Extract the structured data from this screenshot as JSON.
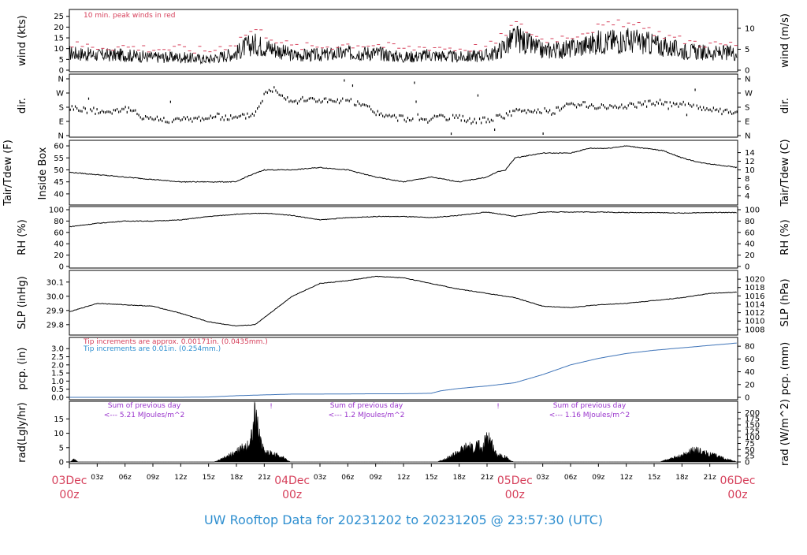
{
  "colors": {
    "red": "#d6405b",
    "blue": "#2f8fd0",
    "purple": "#9933cc",
    "blue_line": "#3f74b8",
    "black": "#000000"
  },
  "chart_data": {
    "type": "line",
    "title": "UW Rooftop Data for 20231202  to  20231205 @ 23:57:30  (UTC)",
    "x_axis": {
      "ticks": [
        "03z",
        "06z",
        "09z",
        "12z",
        "15z",
        "18z",
        "21z",
        "03z",
        "06z",
        "09z",
        "12z",
        "15z",
        "18z",
        "21z",
        "03z",
        "06z",
        "09z",
        "12z",
        "15z",
        "18z",
        "21z"
      ],
      "day_labels": [
        {
          "date": "03Dec",
          "hour": "00z"
        },
        {
          "date": "04Dec",
          "hour": "00z"
        },
        {
          "date": "05Dec",
          "hour": "00z"
        },
        {
          "date": "06Dec",
          "hour": "00z"
        }
      ],
      "range_hours": [
        0,
        72
      ]
    },
    "panels": [
      {
        "id": "wind",
        "ylabel_left": "wind (kts)",
        "ylabel_right": "wind (m/s)",
        "yticks_left": [
          "0",
          "5",
          "10",
          "15",
          "20",
          "25"
        ],
        "yticks_right": [
          "0",
          "5",
          "10"
        ],
        "ylim": [
          0,
          26
        ],
        "annotation": "10 min. peak winds in red",
        "series": [
          {
            "name": "wind speed",
            "x": [
              0,
              3,
              6,
              9,
              12,
              15,
              18,
              19,
              20,
              22,
              24,
              27,
              30,
              33,
              36,
              39,
              42,
              45,
              46,
              48,
              51,
              54,
              57,
              60,
              63,
              66,
              69,
              72
            ],
            "y": [
              8,
              7,
              7,
              6,
              6,
              5,
              8,
              11,
              12,
              10,
              7,
              7,
              8,
              8,
              6,
              7,
              6,
              7,
              8,
              15,
              9,
              10,
              13,
              14,
              12,
              9,
              8,
              8
            ]
          },
          {
            "name": "10 min. peak winds",
            "x": [
              0,
              3,
              6,
              9,
              12,
              15,
              18,
              19,
              20,
              22,
              24,
              27,
              30,
              33,
              36,
              39,
              42,
              45,
              46,
              48,
              51,
              54,
              57,
              60,
              63,
              66,
              69,
              72
            ],
            "y": [
              12,
              11,
              11,
              10,
              10,
              9,
              13,
              17,
              19,
              15,
              11,
              11,
              12,
              12,
              10,
              11,
              10,
              11,
              13,
              22,
              14,
              16,
              20,
              22,
              18,
              14,
              12,
              12
            ]
          }
        ]
      },
      {
        "id": "dir",
        "ylabel_left": "dir.",
        "ylabel_right": "dir.",
        "yticks_left": [
          "N",
          "E",
          "S",
          "W",
          "N"
        ],
        "yticks_right": [
          "N",
          "E",
          "S",
          "W",
          "N"
        ],
        "ylim": [
          0,
          360
        ],
        "series": [
          {
            "name": "wind direction",
            "x": [
              0,
              2,
              4,
              6,
              8,
              10,
              12,
              14,
              16,
              18,
              20,
              21,
              22,
              24,
              26,
              28,
              30,
              32,
              34,
              36,
              38,
              40,
              42,
              44,
              46,
              48,
              50,
              52,
              54,
              56,
              58,
              60,
              62,
              64,
              66,
              68,
              70,
              72
            ],
            "y": [
              180,
              160,
              150,
              170,
              120,
              100,
              100,
              110,
              120,
              110,
              140,
              260,
              300,
              220,
              230,
              220,
              220,
              180,
              120,
              110,
              100,
              110,
              110,
              90,
              110,
              150,
              160,
              150,
              200,
              190,
              180,
              190,
              200,
              210,
              200,
              180,
              150,
              140
            ]
          }
        ]
      },
      {
        "id": "temp",
        "ylabel_left": "Tair/Tdew (F)",
        "ylabel_left2": "Inside Box",
        "ylabel_right": "Tair/Tdew (C)",
        "yticks_left": [
          "40",
          "45",
          "50",
          "55",
          "60"
        ],
        "yticks_right": [
          "4",
          "6",
          "8",
          "10",
          "12",
          "14"
        ],
        "ylim": [
          38,
          61
        ],
        "series": [
          {
            "name": "inside box temperature",
            "x": [
              0,
              3,
              6,
              9,
              12,
              15,
              18,
              19,
              21,
              24,
              27,
              30,
              33,
              36,
              39,
              42,
              45,
              46,
              47,
              48,
              51,
              54,
              56,
              58,
              60,
              62,
              64,
              66,
              68,
              70,
              72
            ],
            "y": [
              49,
              48,
              47,
              46,
              45,
              45,
              45,
              47,
              50,
              50,
              51,
              50,
              47,
              45,
              47,
              45,
              47,
              49,
              50,
              55,
              57,
              57,
              59,
              59,
              60,
              59,
              58,
              55,
              53,
              52,
              51
            ]
          }
        ]
      },
      {
        "id": "rh",
        "ylabel_left": "RH (%)",
        "ylabel_right": "RH (%)",
        "yticks_left": [
          "0",
          "20",
          "40",
          "60",
          "80",
          "100"
        ],
        "yticks_right": [
          "0",
          "20",
          "40",
          "60",
          "80",
          "100"
        ],
        "ylim": [
          0,
          100
        ],
        "series": [
          {
            "name": "relative humidity",
            "x": [
              0,
              3,
              6,
              9,
              12,
              15,
              18,
              21,
              24,
              27,
              30,
              33,
              36,
              39,
              42,
              45,
              48,
              51,
              54,
              57,
              60,
              63,
              66,
              69,
              72
            ],
            "y": [
              70,
              76,
              80,
              80,
              82,
              88,
              92,
              94,
              90,
              82,
              86,
              88,
              88,
              86,
              90,
              96,
              88,
              96,
              96,
              96,
              95,
              95,
              94,
              95,
              95
            ]
          }
        ]
      },
      {
        "id": "slp",
        "ylabel_left": "SLP (inHg)",
        "ylabel_right": "SLP (hPa)",
        "yticks_left": [
          "29.8",
          "29.9",
          "30.0",
          "30.1"
        ],
        "yticks_right": [
          "1008",
          "1010",
          "1012",
          "1014",
          "1016",
          "1018",
          "1020"
        ],
        "ylim": [
          29.76,
          30.16
        ],
        "series": [
          {
            "name": "sea level pressure",
            "x": [
              0,
              3,
              6,
              9,
              12,
              15,
              18,
              20,
              21,
              24,
              27,
              30,
              33,
              36,
              39,
              42,
              45,
              48,
              51,
              54,
              57,
              60,
              63,
              66,
              69,
              72
            ],
            "y": [
              29.89,
              29.95,
              29.94,
              29.93,
              29.88,
              29.82,
              29.79,
              29.8,
              29.85,
              30.0,
              30.09,
              30.11,
              30.14,
              30.13,
              30.09,
              30.05,
              30.02,
              29.99,
              29.93,
              29.92,
              29.94,
              29.95,
              29.97,
              29.99,
              30.02,
              30.03
            ]
          }
        ]
      },
      {
        "id": "pcp",
        "ylabel_left": "pcp. (in)",
        "ylabel_right": "pcp. (mm)",
        "yticks_left": [
          "0.0",
          "0.5",
          "1.0",
          "1.5",
          "2.0",
          "2.5",
          "3.0"
        ],
        "yticks_right": [
          "0",
          "20",
          "40",
          "60",
          "80"
        ],
        "ylim": [
          0,
          3.4
        ],
        "annotations": [
          "Tip increments are approx. 0.00171in. (0.0435mm.)",
          "Tip increments are 0.01in. (0.254mm.)"
        ],
        "series": [
          {
            "name": "accumulated precipitation",
            "x": [
              0,
              12,
              15,
              18,
              21,
              24,
              27,
              30,
              33,
              36,
              39,
              40,
              42,
              45,
              48,
              51,
              54,
              57,
              60,
              63,
              66,
              69,
              72
            ],
            "y": [
              0,
              0,
              0.02,
              0.1,
              0.15,
              0.2,
              0.2,
              0.21,
              0.22,
              0.22,
              0.25,
              0.4,
              0.55,
              0.7,
              0.9,
              1.4,
              2.0,
              2.4,
              2.7,
              2.9,
              3.05,
              3.2,
              3.35
            ]
          }
        ]
      },
      {
        "id": "rad",
        "ylabel_left": "rad(Lgly/hr)",
        "ylabel_right": "rad (W/m^2)",
        "yticks_left": [
          "0",
          "5",
          "10",
          "15"
        ],
        "yticks_right": [
          "0",
          "25",
          "50",
          "75",
          "100",
          "125",
          "150",
          "175",
          "200"
        ],
        "ylim": [
          0,
          19.5
        ],
        "annotations": [
          {
            "line1": "Sum of previous day",
            "line2": "<--- 5.21 MJoules/m^2"
          },
          {
            "line1": "Sum of previous day",
            "line2": "<--- 1.2 MJoules/m^2"
          },
          {
            "line1": "Sum of previous day",
            "line2": "<--- 1.16 MJoules/m^2"
          }
        ],
        "markers": [
          "!",
          "!"
        ],
        "series": [
          {
            "name": "solar radiation",
            "x": [
              0,
              0.5,
              1,
              15.5,
              16,
              17,
              18,
              19,
              19.5,
              20,
              20.5,
              21,
              22,
              23,
              23.5,
              24,
              39.5,
              40,
              41,
              42,
              43,
              43.5,
              44,
              44.5,
              45,
              46,
              47,
              47.5,
              48,
              63.5,
              64,
              65,
              66,
              67,
              67.5,
              68,
              69,
              70,
              71,
              71.5,
              72
            ],
            "y": [
              0,
              1,
              0,
              0,
              0.5,
              2,
              4,
              6,
              8,
              18,
              10,
              4,
              3,
              2,
              0.5,
              0,
              0,
              0.5,
              2,
              4,
              6,
              5,
              7,
              4,
              11,
              3,
              2,
              0.5,
              0,
              0,
              0.5,
              1.5,
              2.5,
              4,
              5,
              4,
              3,
              2,
              1,
              0.5,
              0
            ]
          }
        ]
      }
    ]
  }
}
